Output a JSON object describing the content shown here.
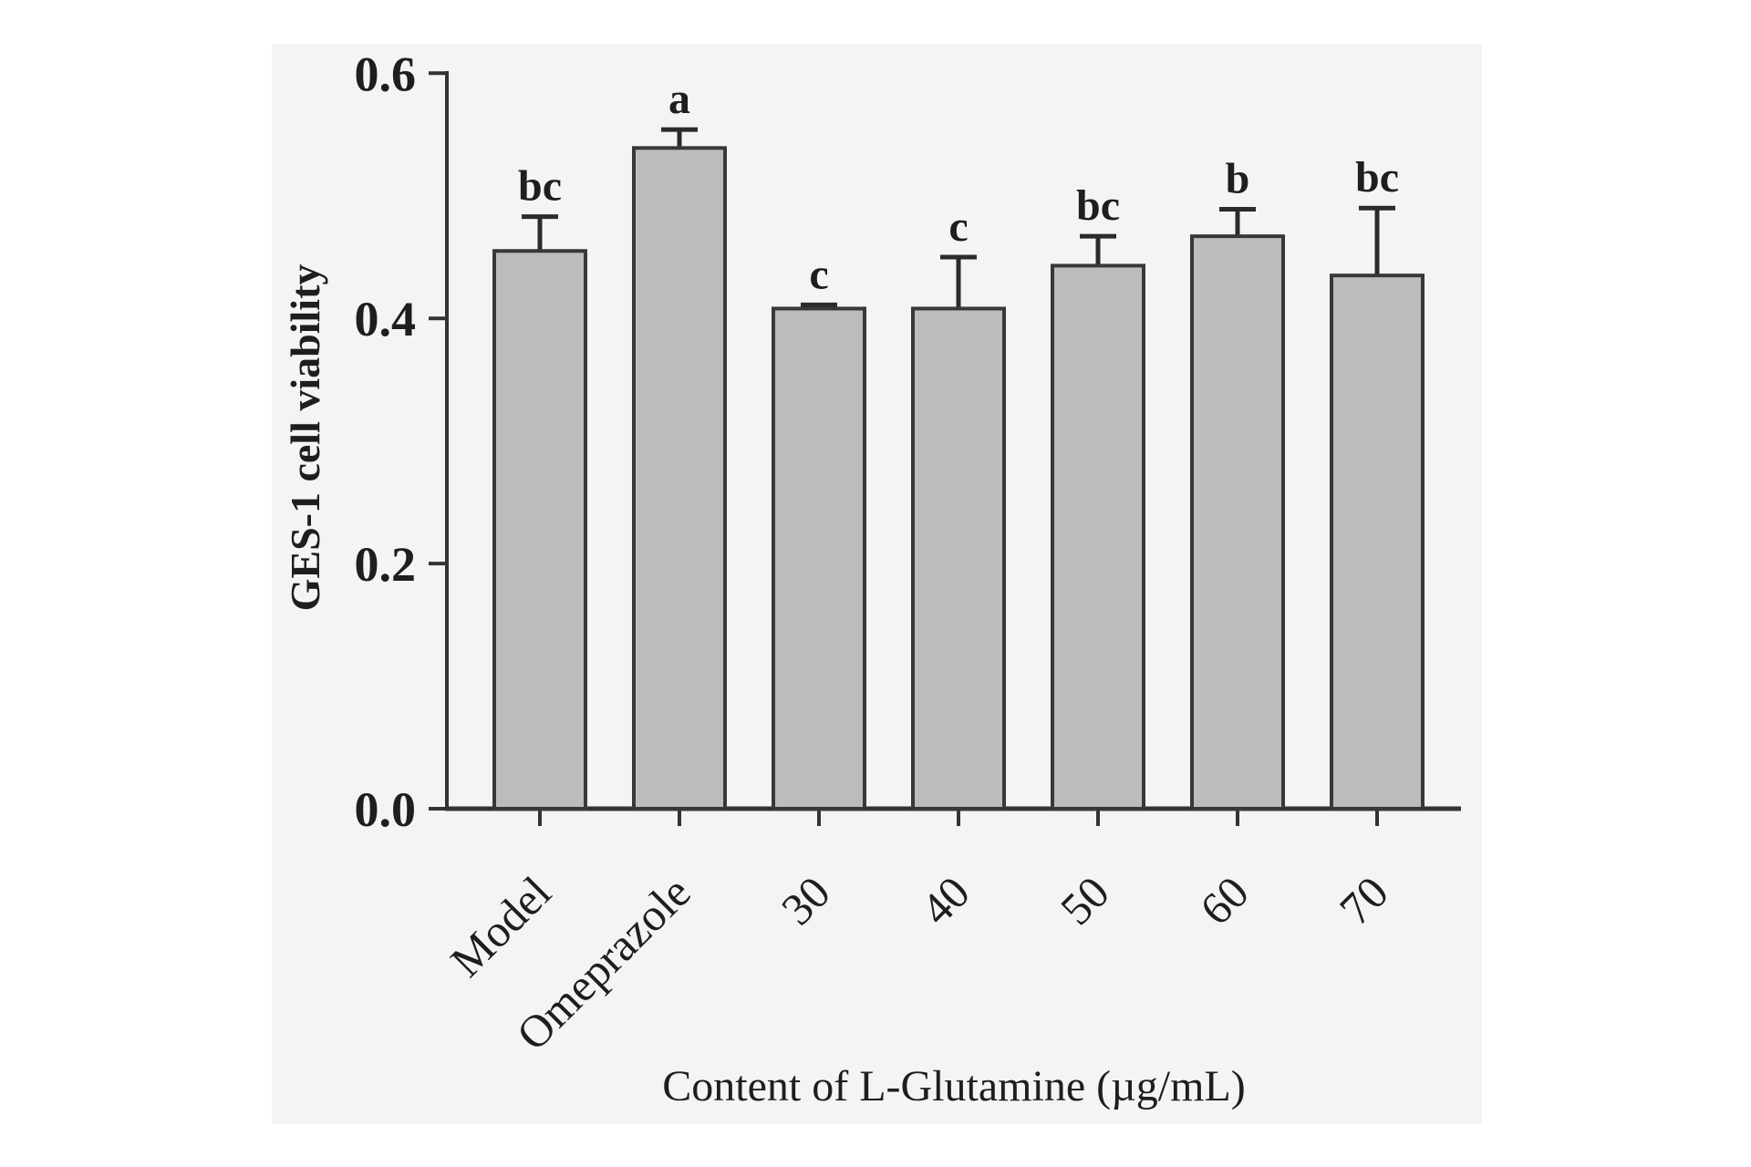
{
  "figure": {
    "panel_bg": "#f5f4f2",
    "page_bg": "#ffffff"
  },
  "chart_data": {
    "type": "bar",
    "title": "",
    "categories": [
      "Model",
      "Omeprazole",
      "30",
      "40",
      "50",
      "60",
      "70"
    ],
    "values": [
      0.455,
      0.539,
      0.408,
      0.408,
      0.443,
      0.467,
      0.435
    ],
    "error_up": [
      0.028,
      0.015,
      0.003,
      0.042,
      0.024,
      0.022,
      0.055
    ],
    "sig_letters": [
      "bc",
      "a",
      "c",
      "c",
      "bc",
      "b",
      "bc"
    ],
    "xlabel": "Content of L-Glutamine (µg/mL)",
    "ylabel": "GES-1 cell viability",
    "ylim": [
      0,
      0.6
    ],
    "yticks": [
      0.0,
      0.2,
      0.4,
      0.6
    ],
    "ytick_labels": [
      "0.0",
      "0.2",
      "0.4",
      "0.6"
    ],
    "grid": false,
    "legend_position": "none",
    "bar_fill": "#bdbcbb",
    "bar_edge": "#383838",
    "axis_color": "#333333",
    "error_color": "#2b2b2b",
    "text_color": "#1e1e1e"
  }
}
